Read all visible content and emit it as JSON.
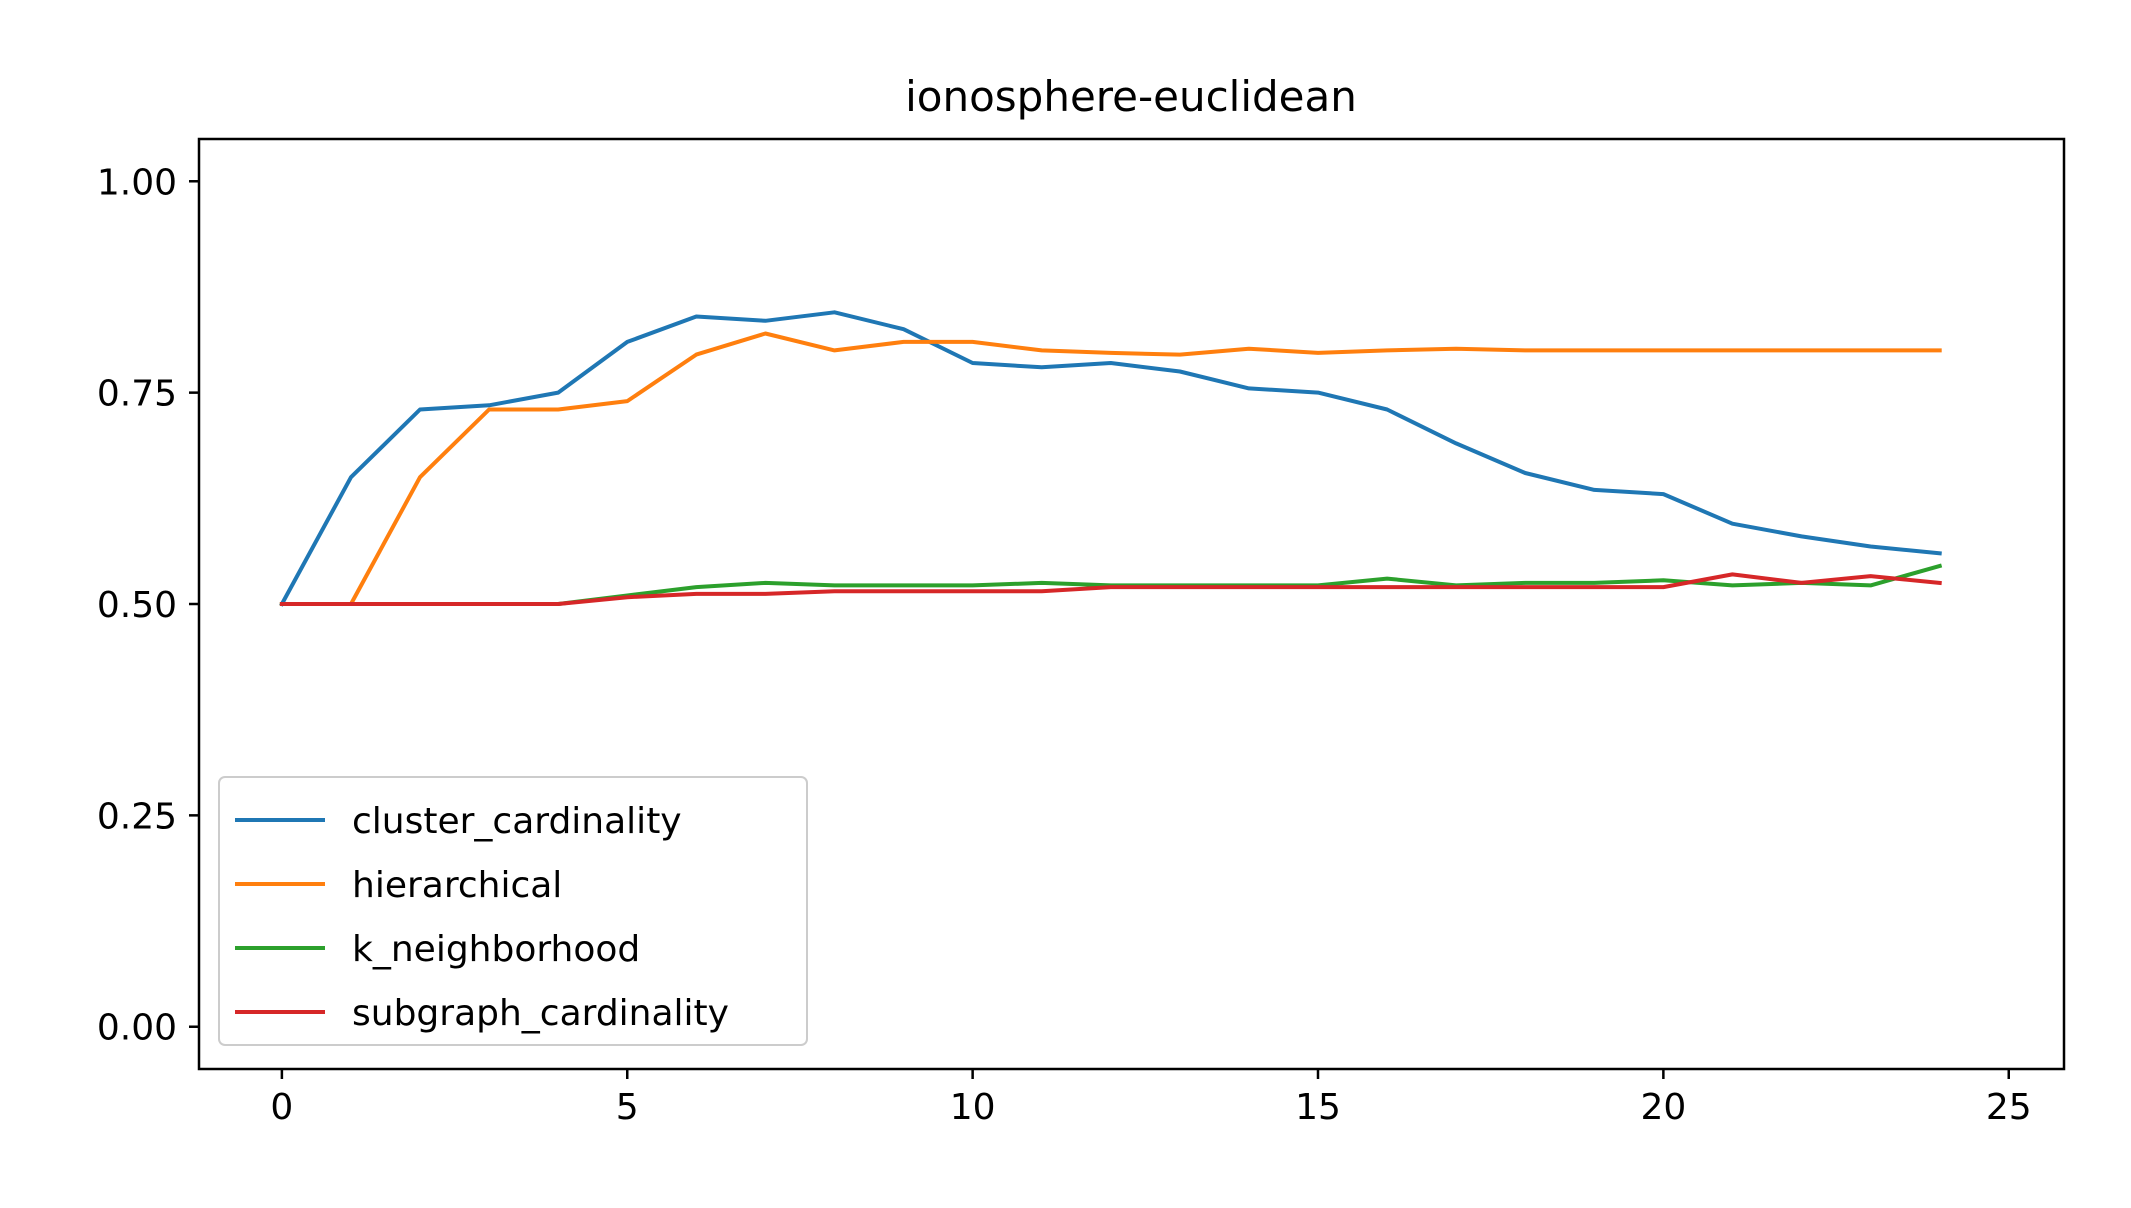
{
  "chart_data": {
    "type": "line",
    "title": "ionosphere-euclidean",
    "xlabel": "",
    "ylabel": "",
    "xlim": [
      -1.2,
      25.8
    ],
    "ylim": [
      -0.05,
      1.05
    ],
    "xticks": [
      0,
      5,
      10,
      15,
      20,
      25
    ],
    "yticks": [
      0.0,
      0.25,
      0.5,
      0.75,
      1.0
    ],
    "xtick_labels": [
      "0",
      "5",
      "10",
      "15",
      "20",
      "25"
    ],
    "ytick_labels": [
      "0.00",
      "0.25",
      "0.50",
      "0.75",
      "1.00"
    ],
    "grid": false,
    "legend_position": "lower-left",
    "x": [
      0,
      1,
      2,
      3,
      4,
      5,
      6,
      7,
      8,
      9,
      10,
      11,
      12,
      13,
      14,
      15,
      16,
      17,
      18,
      19,
      20,
      21,
      22,
      23,
      24
    ],
    "series": [
      {
        "name": "cluster_cardinality",
        "color": "#1f77b4",
        "values": [
          0.5,
          0.65,
          0.73,
          0.735,
          0.75,
          0.81,
          0.84,
          0.835,
          0.845,
          0.825,
          0.785,
          0.78,
          0.785,
          0.775,
          0.755,
          0.75,
          0.73,
          0.69,
          0.655,
          0.635,
          0.63,
          0.595,
          0.58,
          0.568,
          0.56
        ]
      },
      {
        "name": "hierarchical",
        "color": "#ff7f0e",
        "values": [
          0.5,
          0.5,
          0.65,
          0.73,
          0.73,
          0.74,
          0.795,
          0.82,
          0.8,
          0.81,
          0.81,
          0.8,
          0.797,
          0.795,
          0.802,
          0.797,
          0.8,
          0.802,
          0.8,
          0.8,
          0.8,
          0.8,
          0.8,
          0.8,
          0.8
        ]
      },
      {
        "name": "k_neighborhood",
        "color": "#2ca02c",
        "values": [
          0.5,
          0.5,
          0.5,
          0.5,
          0.5,
          0.51,
          0.52,
          0.525,
          0.522,
          0.522,
          0.522,
          0.525,
          0.522,
          0.522,
          0.522,
          0.522,
          0.53,
          0.522,
          0.525,
          0.525,
          0.528,
          0.522,
          0.525,
          0.522,
          0.545
        ]
      },
      {
        "name": "subgraph_cardinality",
        "color": "#d62728",
        "values": [
          0.5,
          0.5,
          0.5,
          0.5,
          0.5,
          0.508,
          0.512,
          0.512,
          0.515,
          0.515,
          0.515,
          0.515,
          0.52,
          0.52,
          0.52,
          0.52,
          0.52,
          0.52,
          0.52,
          0.52,
          0.52,
          0.535,
          0.525,
          0.533,
          0.525
        ]
      }
    ]
  }
}
